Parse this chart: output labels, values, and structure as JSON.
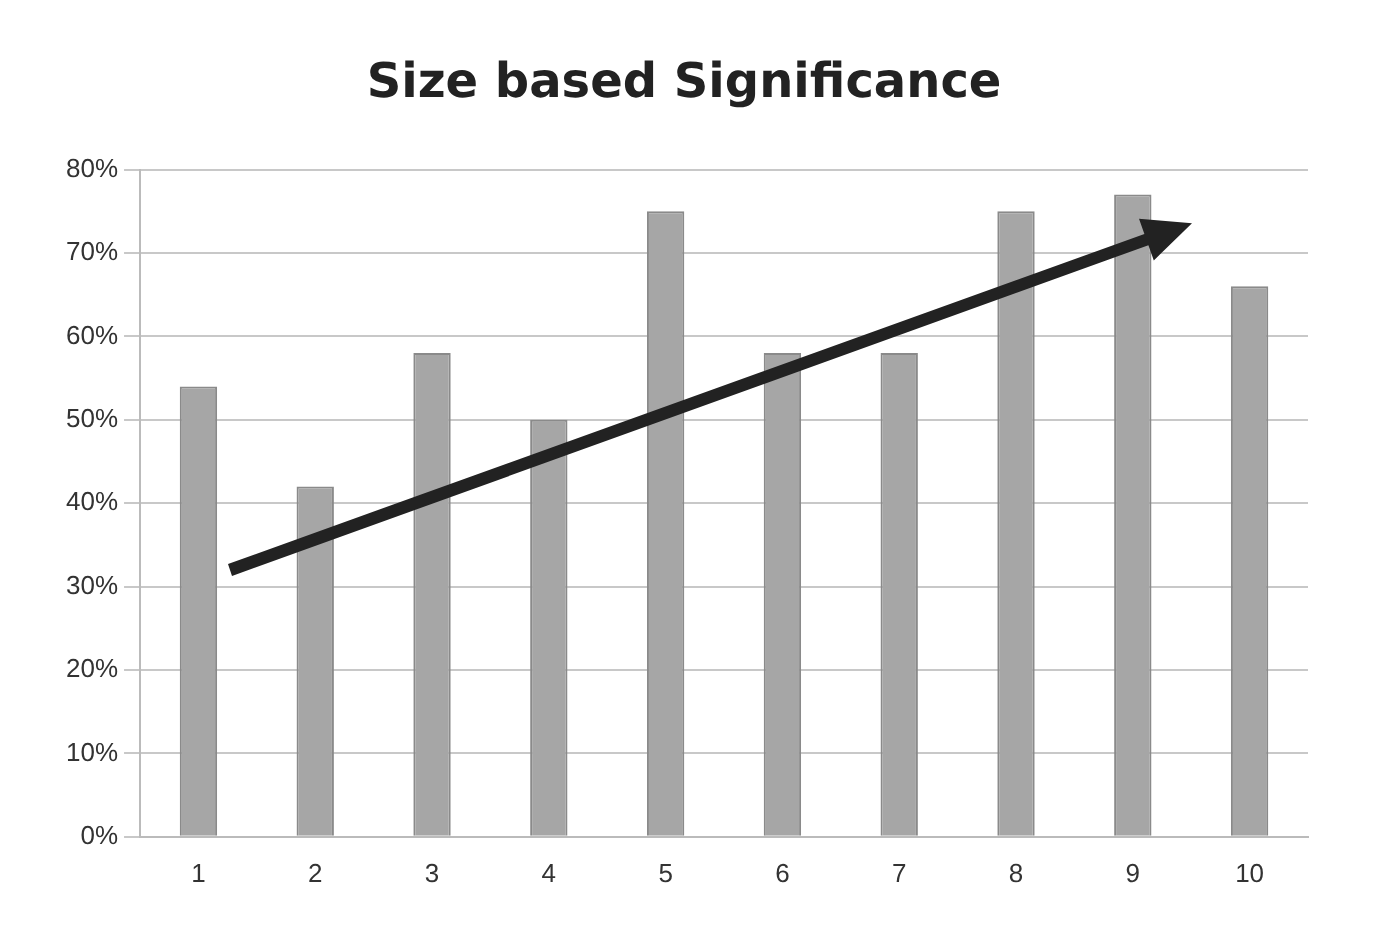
{
  "chart_data": {
    "type": "bar",
    "title": "Size based Significance",
    "categories": [
      "1",
      "2",
      "3",
      "4",
      "5",
      "6",
      "7",
      "8",
      "9",
      "10"
    ],
    "values": [
      54,
      42,
      58,
      50,
      75,
      58,
      58,
      75,
      77,
      66
    ],
    "color": "#a6a6a6",
    "ylim": [
      0,
      80
    ],
    "yticks": [
      {
        "value": 0,
        "label": "0%"
      },
      {
        "value": 10,
        "label": "10%"
      },
      {
        "value": 20,
        "label": "20%"
      },
      {
        "value": 30,
        "label": "30%"
      },
      {
        "value": 40,
        "label": "40%"
      },
      {
        "value": 50,
        "label": "50%"
      },
      {
        "value": 60,
        "label": "60%"
      },
      {
        "value": 70,
        "label": "70%"
      },
      {
        "value": 80,
        "label": "80%"
      }
    ],
    "grid": "y",
    "legend": false
  }
}
